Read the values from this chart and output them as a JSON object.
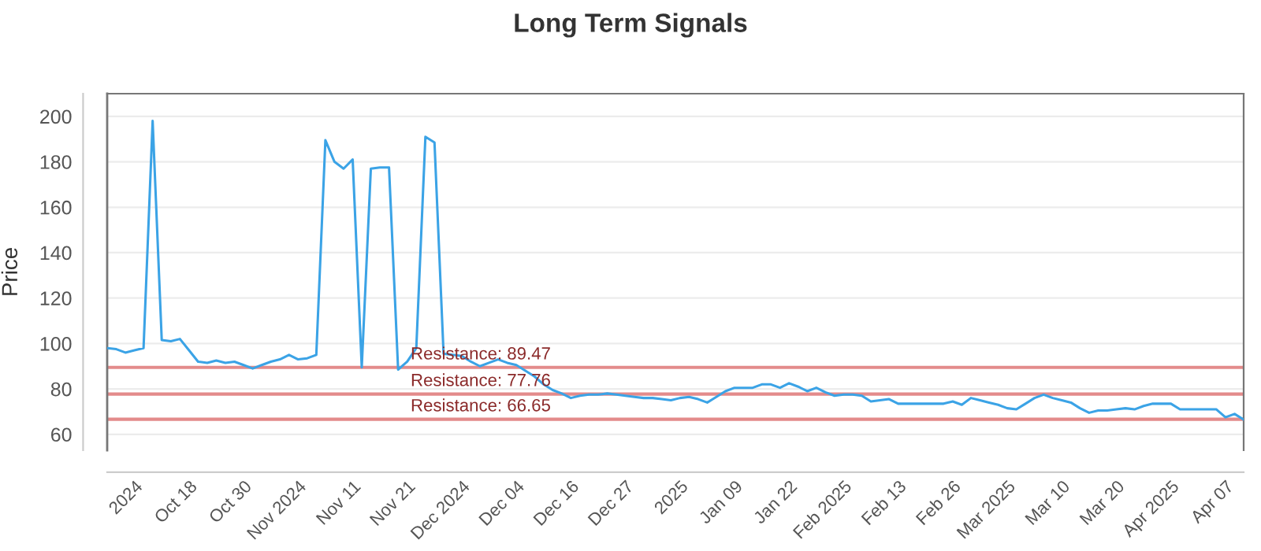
{
  "chart_data": {
    "type": "line",
    "title": "Long Term Signals",
    "ylabel": "Price",
    "categories": [
      null,
      null,
      null,
      "2024",
      null,
      null,
      null,
      null,
      null,
      "Oct 18",
      null,
      null,
      null,
      null,
      null,
      "Oct 30",
      null,
      null,
      null,
      null,
      null,
      "Nov 2024",
      null,
      null,
      null,
      null,
      null,
      "Nov 11",
      null,
      null,
      null,
      null,
      null,
      "Nov 21",
      null,
      null,
      null,
      null,
      null,
      "Dec 2024",
      null,
      null,
      null,
      null,
      null,
      "Dec 04",
      null,
      null,
      null,
      null,
      null,
      "Dec 16",
      null,
      null,
      null,
      null,
      null,
      "Dec 27",
      null,
      null,
      null,
      null,
      null,
      "2025",
      null,
      null,
      null,
      null,
      null,
      "Jan 09",
      null,
      null,
      null,
      null,
      null,
      "Jan 22",
      null,
      null,
      null,
      null,
      null,
      "Feb 2025",
      null,
      null,
      null,
      null,
      null,
      "Feb 13",
      null,
      null,
      null,
      null,
      null,
      "Feb 26",
      null,
      null,
      null,
      null,
      null,
      "Mar 2025",
      null,
      null,
      null,
      null,
      null,
      "Mar 10",
      null,
      null,
      null,
      null,
      null,
      "Mar 20",
      null,
      null,
      null,
      null,
      null,
      "Apr 2025",
      null,
      null,
      null,
      null,
      null,
      "Apr 07",
      null,
      null
    ],
    "values": [
      98,
      97.5,
      96,
      97,
      98,
      198,
      101.5,
      101,
      102,
      97,
      92,
      91.5,
      92.5,
      91.5,
      92,
      90.5,
      89,
      90.5,
      92,
      93,
      95,
      93,
      93.5,
      95,
      189.5,
      180,
      177,
      181,
      89.5,
      177,
      177.5,
      177.5,
      88.5,
      92,
      98,
      191,
      188.5,
      95.5,
      95,
      94.5,
      92,
      90,
      91.5,
      93,
      91.5,
      90.5,
      88,
      85.5,
      82,
      79.5,
      78,
      76,
      77,
      77.5,
      77.5,
      78,
      77.5,
      77,
      76.5,
      76,
      76,
      75.5,
      75,
      76,
      76.5,
      75.5,
      74,
      76.5,
      79,
      80.5,
      80.5,
      80.5,
      82,
      82,
      80.5,
      82.5,
      81,
      79,
      80.5,
      78.5,
      77,
      77.5,
      77.5,
      77,
      74.5,
      75,
      75.5,
      73.5,
      73.5,
      73.5,
      73.5,
      73.5,
      73.5,
      74.5,
      73,
      76,
      75,
      74,
      73,
      71.5,
      71,
      73.5,
      76,
      77.5,
      76,
      75,
      74,
      71.5,
      69.5,
      70.5,
      70.5,
      71,
      71.5,
      71,
      72.5,
      73.5,
      73.5,
      73.5,
      71,
      71,
      71,
      71,
      71,
      67.5,
      69,
      66.5
    ],
    "color": "#3ba3e6",
    "line_style": "solid",
    "ylim": [
      53,
      210
    ],
    "yticks": [
      60,
      80,
      100,
      120,
      140,
      160,
      180,
      200
    ],
    "grid": "y",
    "ref_lines": [
      {
        "axis": "y",
        "value": 89.47,
        "label": "Resistance: 89.47",
        "color": "#e38b8b"
      },
      {
        "axis": "y",
        "value": 77.76,
        "label": "Resistance: 77.76",
        "color": "#e38b8b"
      },
      {
        "axis": "y",
        "value": 66.65,
        "label": "Resistance: 66.65",
        "color": "#e38b8b"
      }
    ]
  }
}
